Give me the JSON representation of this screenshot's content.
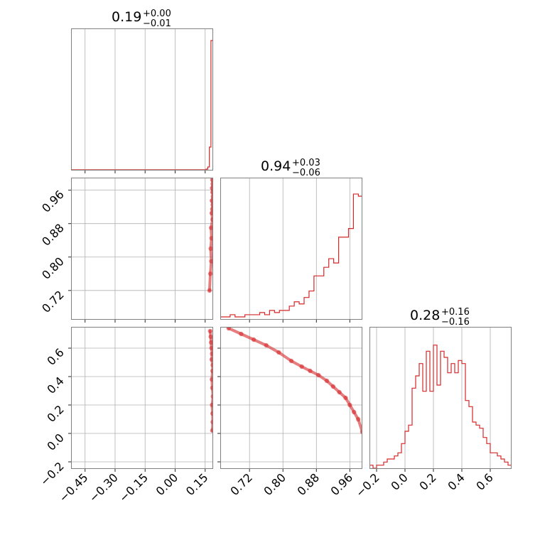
{
  "chart_data": {
    "type": "corner",
    "color": "#d62728",
    "parameters": [
      {
        "title_value": "0.19",
        "title_plus": "+0.00",
        "title_minus": "−0.01",
        "range": [
          -0.52,
          0.19
        ],
        "ticks": [
          -0.45,
          -0.3,
          -0.15,
          0.0,
          0.15
        ],
        "tick_labels": [
          "−0.45",
          "−0.30",
          "−0.15",
          "0.00",
          "0.15"
        ],
        "hist_edges": [
          -0.52,
          0.155,
          0.163,
          0.171,
          0.179,
          0.185,
          0.19
        ],
        "hist_counts": [
          0,
          0.5,
          2,
          16,
          91,
          91
        ]
      },
      {
        "title_value": "0.94",
        "title_plus": "+0.03",
        "title_minus": "−0.06",
        "range": [
          0.65,
          0.99
        ],
        "ticks": [
          0.72,
          0.8,
          0.88,
          0.96
        ],
        "tick_labels": [
          "0.72",
          "0.80",
          "0.88",
          "0.96"
        ],
        "hist_edges": [
          0.65,
          0.6618,
          0.6736,
          0.6854,
          0.6972,
          0.709,
          0.7208,
          0.7326,
          0.7444,
          0.7562,
          0.768,
          0.7798,
          0.7916,
          0.8034,
          0.8152,
          0.827,
          0.8388,
          0.8506,
          0.8624,
          0.8742,
          0.886,
          0.8978,
          0.9096,
          0.9214,
          0.9332,
          0.945,
          0.9568,
          0.9686,
          0.9804,
          0.99
        ],
        "hist_counts": [
          1,
          1,
          2,
          1,
          1,
          2,
          2,
          2,
          3,
          2,
          4,
          3,
          4,
          4,
          6,
          8,
          7,
          10,
          13,
          20,
          20,
          24,
          28,
          26,
          38,
          38,
          42,
          58,
          57
        ],
        "hist_max": 60
      },
      {
        "title_value": "0.28",
        "title_plus": "+0.16",
        "title_minus": "−0.16",
        "range": [
          -0.25,
          0.75
        ],
        "ticks": [
          -0.2,
          0.0,
          0.2,
          0.4,
          0.6
        ],
        "tick_labels": [
          "−0.2",
          "0.0",
          "0.2",
          "0.4",
          "0.6"
        ],
        "hist_edges": [
          -0.25,
          -0.225,
          -0.2,
          -0.175,
          -0.15,
          -0.125,
          -0.1,
          -0.075,
          -0.05,
          -0.025,
          0.0,
          0.025,
          0.05,
          0.075,
          0.1,
          0.125,
          0.15,
          0.175,
          0.2,
          0.225,
          0.25,
          0.275,
          0.3,
          0.325,
          0.35,
          0.375,
          0.4,
          0.425,
          0.45,
          0.475,
          0.5,
          0.525,
          0.55,
          0.575,
          0.6,
          0.625,
          0.65,
          0.675,
          0.7,
          0.725,
          0.75
        ],
        "hist_counts": [
          1,
          0,
          1,
          1,
          2,
          3,
          3,
          4,
          5,
          8,
          12,
          14,
          26,
          30,
          34,
          25,
          38,
          25,
          40,
          27,
          38,
          36,
          31,
          34,
          31,
          35,
          34,
          22,
          20,
          15,
          14,
          13,
          10,
          8,
          5,
          5,
          4,
          3,
          2,
          1
        ],
        "hist_max": 42
      }
    ],
    "scatter": {
      "p2_vs_p1": {
        "x": [
          0.186,
          0.188,
          0.185,
          0.187,
          0.189,
          0.184,
          0.188,
          0.186,
          0.183,
          0.187,
          0.18,
          0.182,
          0.178,
          0.181,
          0.176,
          0.172
        ],
        "y": [
          0.985,
          0.975,
          0.965,
          0.955,
          0.945,
          0.935,
          0.925,
          0.915,
          0.905,
          0.89,
          0.87,
          0.845,
          0.82,
          0.79,
          0.76,
          0.72
        ]
      },
      "p3_vs_p1": {
        "x": [
          0.186,
          0.188,
          0.187,
          0.185,
          0.189,
          0.186,
          0.184,
          0.187,
          0.188,
          0.183,
          0.185,
          0.182,
          0.18,
          0.178,
          0.175
        ],
        "y": [
          0.02,
          0.08,
          0.14,
          0.2,
          0.26,
          0.32,
          0.38,
          0.44,
          0.48,
          0.52,
          0.56,
          0.6,
          0.64,
          0.68,
          0.72
        ]
      },
      "p3_vs_p2": {
        "x": [
          0.67,
          0.7,
          0.73,
          0.76,
          0.79,
          0.82,
          0.845,
          0.865,
          0.885,
          0.905,
          0.92,
          0.935,
          0.95,
          0.96,
          0.97,
          0.98,
          0.99
        ],
        "y": [
          0.74,
          0.7,
          0.66,
          0.62,
          0.57,
          0.51,
          0.47,
          0.44,
          0.41,
          0.37,
          0.33,
          0.29,
          0.25,
          0.2,
          0.15,
          0.1,
          0.01
        ]
      }
    },
    "grid": true
  }
}
